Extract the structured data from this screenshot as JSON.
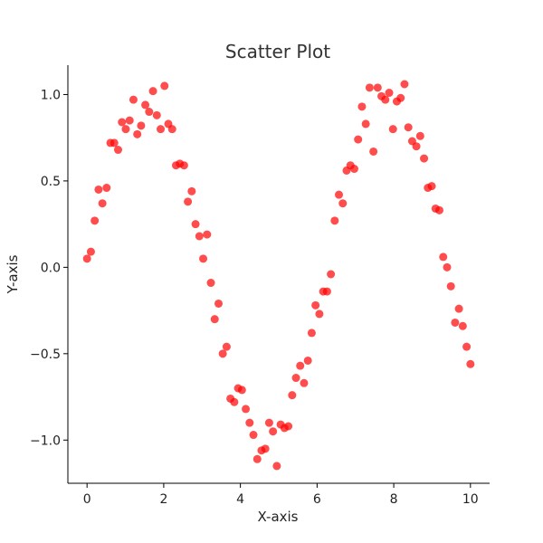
{
  "chart_data": {
    "type": "scatter",
    "title": "Scatter Plot",
    "xlabel": "X-axis",
    "ylabel": "Y-axis",
    "xlim": [
      -0.5,
      10.5
    ],
    "ylim": [
      -1.25,
      1.17
    ],
    "x_ticks": [
      0,
      2,
      4,
      6,
      8,
      10
    ],
    "x_tick_labels": [
      "0",
      "2",
      "4",
      "6",
      "8",
      "10"
    ],
    "y_ticks": [
      -1.0,
      -0.5,
      0.0,
      0.5,
      1.0
    ],
    "y_tick_labels": [
      "−1.0",
      "−0.5",
      "0.0",
      "0.5",
      "1.0"
    ],
    "grid": false,
    "point_color": "#ff0000",
    "point_alpha": 0.7,
    "series": [
      {
        "x": [
          0.0,
          0.1,
          0.2,
          0.3,
          0.4,
          0.51,
          0.61,
          0.71,
          0.81,
          0.91,
          1.01,
          1.11,
          1.21,
          1.31,
          1.41,
          1.52,
          1.62,
          1.72,
          1.82,
          1.92,
          2.02,
          2.12,
          2.22,
          2.32,
          2.42,
          2.53,
          2.63,
          2.73,
          2.83,
          2.93,
          3.03,
          3.13,
          3.23,
          3.33,
          3.43,
          3.54,
          3.64,
          3.74,
          3.84,
          3.94,
          4.04,
          4.14,
          4.24,
          4.34,
          4.44,
          4.55,
          4.65,
          4.75,
          4.85,
          4.95,
          5.05,
          5.15,
          5.25,
          5.35,
          5.45,
          5.56,
          5.66,
          5.76,
          5.86,
          5.96,
          6.06,
          6.16,
          6.26,
          6.36,
          6.46,
          6.57,
          6.67,
          6.77,
          6.87,
          6.97,
          7.07,
          7.17,
          7.27,
          7.37,
          7.47,
          7.58,
          7.68,
          7.78,
          7.88,
          7.98,
          8.08,
          8.18,
          8.28,
          8.38,
          8.48,
          8.59,
          8.69,
          8.79,
          8.89,
          8.99,
          9.09,
          9.19,
          9.29,
          9.39,
          9.49,
          9.6,
          9.7,
          9.8,
          9.9,
          10.0
        ],
        "y": [
          0.05,
          0.09,
          0.27,
          0.45,
          0.37,
          0.46,
          0.72,
          0.72,
          0.68,
          0.84,
          0.8,
          0.85,
          0.97,
          0.77,
          0.82,
          0.94,
          0.9,
          1.02,
          0.88,
          0.8,
          1.05,
          0.83,
          0.8,
          0.59,
          0.6,
          0.59,
          0.38,
          0.44,
          0.25,
          0.18,
          0.05,
          0.19,
          -0.09,
          -0.3,
          -0.21,
          -0.5,
          -0.46,
          -0.76,
          -0.78,
          -0.7,
          -0.71,
          -0.82,
          -0.9,
          -0.97,
          -1.11,
          -1.06,
          -1.05,
          -0.9,
          -0.95,
          -1.15,
          -0.91,
          -0.93,
          -0.92,
          -0.74,
          -0.64,
          -0.57,
          -0.67,
          -0.54,
          -0.38,
          -0.22,
          -0.27,
          -0.14,
          -0.14,
          -0.04,
          0.27,
          0.42,
          0.37,
          0.56,
          0.59,
          0.57,
          0.74,
          0.93,
          0.83,
          1.04,
          0.67,
          1.04,
          0.99,
          0.97,
          1.01,
          0.8,
          0.96,
          0.98,
          1.06,
          0.81,
          0.73,
          0.7,
          0.76,
          0.63,
          0.46,
          0.47,
          0.34,
          0.33,
          0.06,
          0.0,
          -0.11,
          -0.32,
          -0.24,
          -0.34,
          -0.46,
          -0.56
        ]
      }
    ]
  }
}
